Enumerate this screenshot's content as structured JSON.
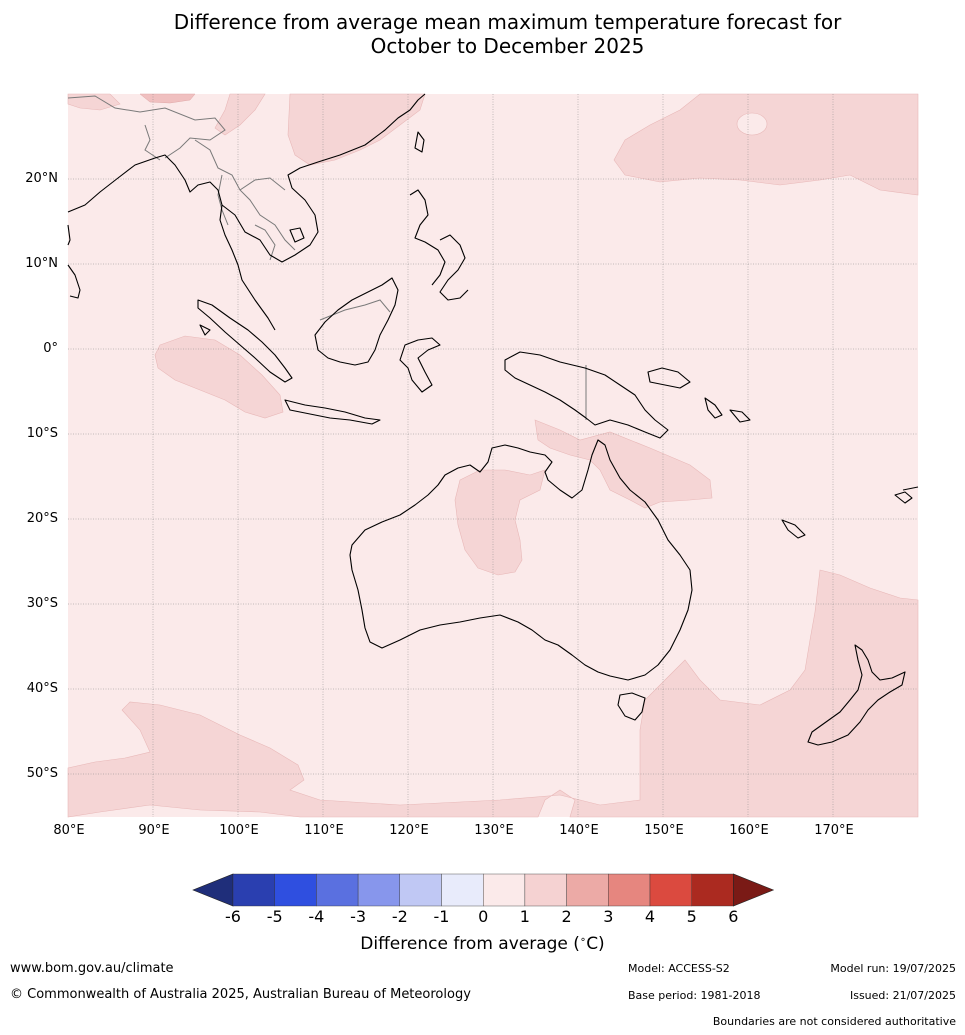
{
  "title_line1": "Difference from average mean maximum temperature forecast for",
  "title_line2": "October to December 2025",
  "lat_labels": [
    "20°N",
    "10°N",
    "0°",
    "10°S",
    "20°S",
    "30°S",
    "40°S",
    "50°S"
  ],
  "lon_labels": [
    "80°E",
    "90°E",
    "100°E",
    "110°E",
    "120°E",
    "130°E",
    "140°E",
    "150°E",
    "160°E",
    "170°E"
  ],
  "colorbar": {
    "ticks": [
      "-6",
      "-5",
      "-4",
      "-3",
      "-2",
      "-1",
      "0",
      "1",
      "2",
      "3",
      "4",
      "5",
      "6"
    ],
    "colors": [
      "#1f2e7a",
      "#2a3fb0",
      "#2f4fe0",
      "#5a70e0",
      "#8796ec",
      "#c0c8f4",
      "#e8ebfb",
      "#fbeaea",
      "#f5d2d2",
      "#ecaaa6",
      "#e6867f",
      "#db4a3f",
      "#ab2a20",
      "#7a1a16"
    ],
    "label": "Difference from average (°C)",
    "label_text": "Difference from average (",
    "label_unit": "∘",
    "label_end": "C)"
  },
  "footer": {
    "url": "www.bom.gov.au/climate",
    "copyright": "© Commonwealth of Australia 2025, Australian Bureau of Meteorology",
    "model": "Model: ACCESS-S2",
    "model_run": "Model run: 19/07/2025",
    "base_period": "Base period: 1981-2018",
    "issued": "Issued: 21/07/2025",
    "disclaimer": "Boundaries are not considered authoritative"
  },
  "map_colors": {
    "background": "#fbeaea",
    "warm_patch": "#f5d5d5",
    "warmer_patch": "#f0c0c0",
    "coast": "#000000",
    "border": "#808080",
    "grid": "#888888"
  }
}
